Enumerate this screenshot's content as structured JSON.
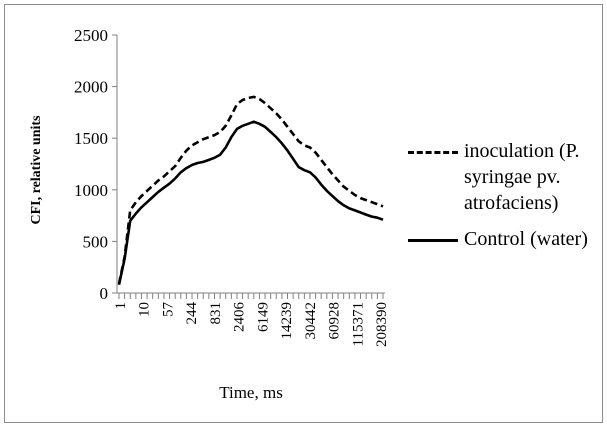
{
  "chart_data": {
    "type": "line",
    "ylabel": "CFI, relative units",
    "xlabel": "Time, ms",
    "ylim": [
      0,
      2500
    ],
    "y_ticks": [
      0,
      500,
      1000,
      1500,
      2000,
      2500
    ],
    "x_tick_labels": [
      "1",
      "10",
      "57",
      "244",
      "831",
      "2406",
      "6149",
      "14239",
      "30442",
      "60928",
      "115371",
      "208390"
    ],
    "grid": false,
    "legend_position": "right",
    "series": [
      {
        "name": "inoculation (P. syringae pv. atrofaciens)",
        "style": "dashed",
        "color": "#000000",
        "values": [
          90,
          350,
          800,
          880,
          940,
          990,
          1040,
          1090,
          1130,
          1180,
          1230,
          1310,
          1380,
          1430,
          1460,
          1490,
          1510,
          1530,
          1560,
          1620,
          1720,
          1830,
          1870,
          1890,
          1900,
          1880,
          1840,
          1790,
          1740,
          1680,
          1610,
          1540,
          1470,
          1430,
          1410,
          1360,
          1290,
          1220,
          1150,
          1090,
          1030,
          990,
          950,
          920,
          900,
          880,
          860,
          840
        ]
      },
      {
        "name": "Control (water)",
        "style": "solid",
        "color": "#000000",
        "values": [
          80,
          330,
          700,
          770,
          830,
          880,
          930,
          980,
          1020,
          1060,
          1110,
          1170,
          1210,
          1240,
          1260,
          1270,
          1290,
          1310,
          1340,
          1410,
          1510,
          1590,
          1620,
          1640,
          1660,
          1640,
          1610,
          1560,
          1510,
          1450,
          1380,
          1300,
          1220,
          1190,
          1170,
          1120,
          1050,
          990,
          940,
          890,
          850,
          820,
          800,
          780,
          760,
          740,
          730,
          710
        ]
      }
    ]
  }
}
